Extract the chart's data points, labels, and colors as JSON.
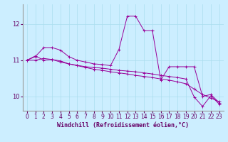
{
  "xlabel": "Windchill (Refroidissement éolien,°C)",
  "background_color": "#cceeff",
  "grid_color": "#aaddee",
  "line_color": "#990099",
  "x": [
    0,
    1,
    2,
    3,
    4,
    5,
    6,
    7,
    8,
    9,
    10,
    11,
    12,
    13,
    14,
    15,
    16,
    17,
    18,
    19,
    20,
    21,
    22,
    23
  ],
  "line1": [
    11.0,
    11.1,
    11.35,
    11.35,
    11.28,
    11.1,
    11.0,
    10.95,
    10.9,
    10.88,
    10.85,
    11.3,
    12.22,
    12.22,
    11.82,
    11.82,
    10.45,
    10.82,
    10.82,
    10.82,
    10.82,
    10.0,
    10.05,
    9.82
  ],
  "line2": [
    11.0,
    11.12,
    11.0,
    11.02,
    10.95,
    10.9,
    10.86,
    10.82,
    10.8,
    10.78,
    10.75,
    10.72,
    10.7,
    10.68,
    10.65,
    10.62,
    10.58,
    10.55,
    10.52,
    10.48,
    9.98,
    9.72,
    10.02,
    9.78
  ],
  "line3": [
    11.0,
    11.0,
    11.05,
    11.02,
    10.98,
    10.9,
    10.85,
    10.8,
    10.75,
    10.72,
    10.68,
    10.65,
    10.62,
    10.58,
    10.55,
    10.52,
    10.48,
    10.45,
    10.4,
    10.35,
    10.2,
    10.05,
    9.95,
    9.85
  ],
  "ylim": [
    9.6,
    12.55
  ],
  "yticks": [
    10,
    11,
    12
  ],
  "xticks": [
    0,
    1,
    2,
    3,
    4,
    5,
    6,
    7,
    8,
    9,
    10,
    11,
    12,
    13,
    14,
    15,
    16,
    17,
    18,
    19,
    20,
    21,
    22,
    23
  ],
  "tick_fontsize": 5.5,
  "xlabel_fontsize": 6.0
}
